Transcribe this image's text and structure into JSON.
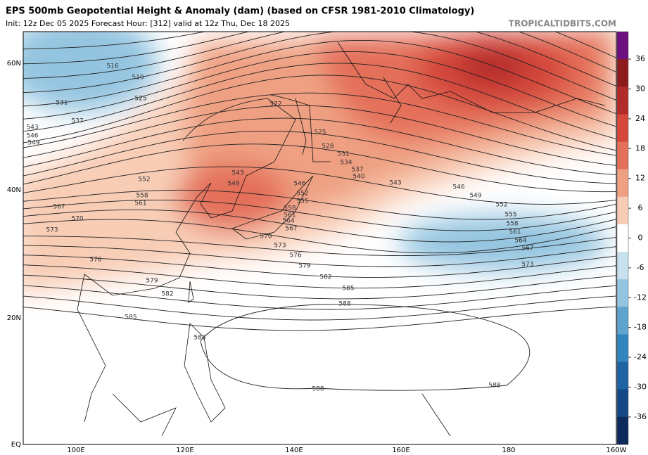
{
  "header": {
    "title": "EPS 500mb Geopotential Height & Anomaly (dam) (based on CFSR 1981-2010 Climatology)",
    "subtitle": "Init: 12z Dec 05 2025   Forecast Hour: [312]   valid at 12z Thu, Dec 18 2025",
    "source": "TROPICALTIDBITS.COM"
  },
  "map": {
    "lat_labels": [
      "60N",
      "40N",
      "20N",
      "EQ"
    ],
    "lon_labels": [
      "100E",
      "120E",
      "140E",
      "160E",
      "180",
      "160W"
    ],
    "contour_labels": [
      516,
      519,
      525,
      531,
      537,
      543,
      546,
      549,
      522,
      525,
      528,
      531,
      534,
      537,
      540,
      543,
      546,
      549,
      552,
      555,
      558,
      561,
      564,
      567,
      573,
      552,
      558,
      561,
      543,
      549,
      546,
      552,
      555,
      558,
      561,
      564,
      567,
      570,
      573,
      576,
      579,
      582,
      585,
      588,
      567,
      570,
      573,
      576,
      579,
      582,
      585,
      588,
      588,
      588
    ]
  },
  "colorbar": {
    "ticks": [
      36,
      30,
      24,
      18,
      12,
      6,
      0,
      -6,
      -12,
      -18,
      -24,
      -30,
      -36
    ],
    "colors": [
      "#6d0f7e",
      "#8e1b1e",
      "#b32a2a",
      "#d4473a",
      "#e4705a",
      "#efa082",
      "#f8cdb6",
      "#ffffff",
      "#c7e1ef",
      "#94c5e0",
      "#5ea4cf",
      "#3385bd",
      "#1e63a4",
      "#154985",
      "#0c2b5c"
    ]
  }
}
